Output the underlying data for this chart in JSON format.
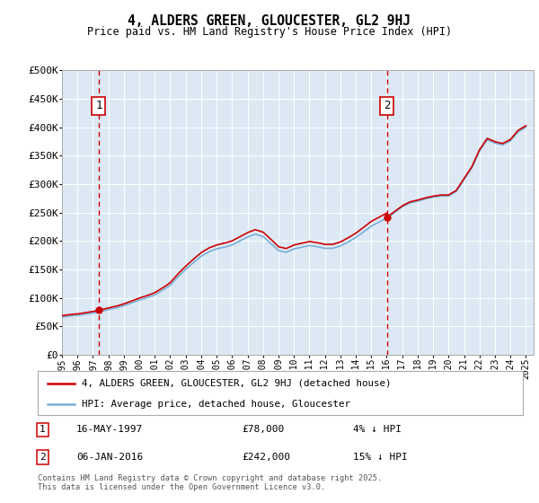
{
  "title": "4, ALDERS GREEN, GLOUCESTER, GL2 9HJ",
  "subtitle": "Price paid vs. HM Land Registry's House Price Index (HPI)",
  "ylim": [
    0,
    500000
  ],
  "yticks": [
    0,
    50000,
    100000,
    150000,
    200000,
    250000,
    300000,
    350000,
    400000,
    450000,
    500000
  ],
  "ytick_labels": [
    "£0",
    "£50K",
    "£100K",
    "£150K",
    "£200K",
    "£250K",
    "£300K",
    "£350K",
    "£400K",
    "£450K",
    "£500K"
  ],
  "xlim_start": 1995.0,
  "xlim_end": 2025.5,
  "plot_bg_color": "#dce9f5",
  "fig_bg_color": "#ffffff",
  "red_line_color": "#cc0000",
  "blue_line_color": "#7aaed6",
  "vline_color": "#cc0000",
  "vline1_x": 1997.37,
  "vline2_x": 2016.02,
  "annotation1": {
    "label": "1",
    "date": "16-MAY-1997",
    "price": "£78,000",
    "hpi": "4% ↓ HPI"
  },
  "annotation2": {
    "label": "2",
    "date": "06-JAN-2016",
    "price": "£242,000",
    "hpi": "15% ↓ HPI"
  },
  "legend_line1": "4, ALDERS GREEN, GLOUCESTER, GL2 9HJ (detached house)",
  "legend_line2": "HPI: Average price, detached house, Gloucester",
  "footnote": "Contains HM Land Registry data © Crown copyright and database right 2025.\nThis data is licensed under the Open Government Licence v3.0.",
  "hpi_data": {
    "years": [
      1995.0,
      1995.5,
      1996.0,
      1996.5,
      1997.0,
      1997.5,
      1998.0,
      1998.5,
      1999.0,
      1999.5,
      2000.0,
      2000.5,
      2001.0,
      2001.5,
      2002.0,
      2002.5,
      2003.0,
      2003.5,
      2004.0,
      2004.5,
      2005.0,
      2005.5,
      2006.0,
      2006.5,
      2007.0,
      2007.5,
      2008.0,
      2008.5,
      2009.0,
      2009.5,
      2010.0,
      2010.5,
      2011.0,
      2011.5,
      2012.0,
      2012.5,
      2013.0,
      2013.5,
      2014.0,
      2014.5,
      2015.0,
      2015.5,
      2016.0,
      2016.5,
      2017.0,
      2017.5,
      2018.0,
      2018.5,
      2019.0,
      2019.5,
      2020.0,
      2020.5,
      2021.0,
      2021.5,
      2022.0,
      2022.5,
      2023.0,
      2023.5,
      2024.0,
      2024.5,
      2025.0
    ],
    "values": [
      66000,
      68000,
      69000,
      71000,
      73000,
      76000,
      79000,
      82000,
      86000,
      91000,
      96000,
      100000,
      105000,
      113000,
      122000,
      137000,
      150000,
      162000,
      173000,
      181000,
      186000,
      189000,
      193000,
      200000,
      207000,
      212000,
      208000,
      196000,
      183000,
      180000,
      186000,
      189000,
      192000,
      190000,
      187000,
      187000,
      191000,
      198000,
      206000,
      216000,
      226000,
      233000,
      240000,
      250000,
      260000,
      267000,
      270000,
      274000,
      277000,
      279000,
      279000,
      287000,
      308000,
      328000,
      358000,
      378000,
      372000,
      369000,
      376000,
      392000,
      400000
    ]
  },
  "price_paid_data": {
    "years": [
      1997.37,
      2016.02
    ],
    "values": [
      78000,
      242000
    ]
  }
}
